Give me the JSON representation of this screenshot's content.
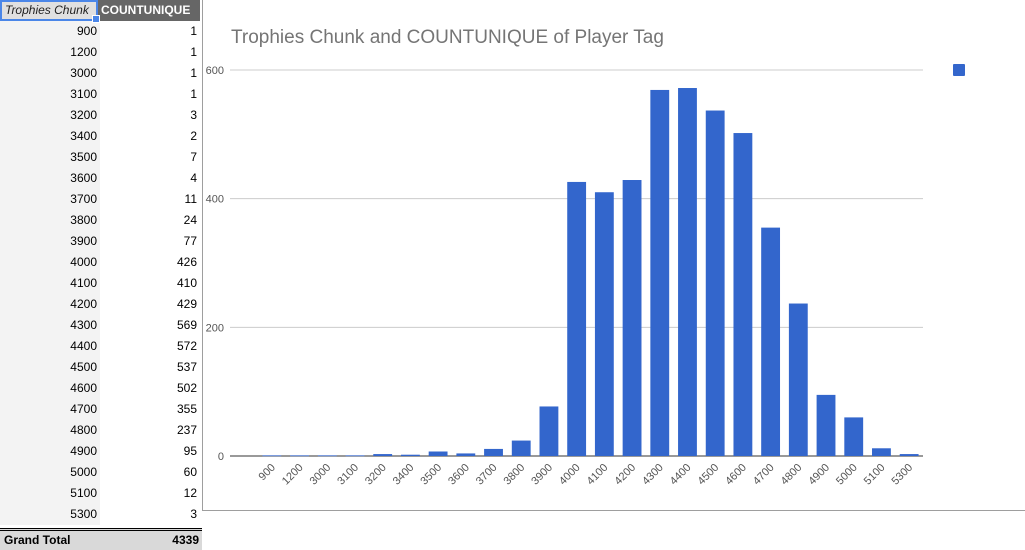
{
  "table": {
    "headers": [
      "Trophies Chunk",
      "COUNTUNIQUE"
    ],
    "rows": [
      [
        "900",
        "1"
      ],
      [
        "1200",
        "1"
      ],
      [
        "3000",
        "1"
      ],
      [
        "3100",
        "1"
      ],
      [
        "3200",
        "3"
      ],
      [
        "3400",
        "2"
      ],
      [
        "3500",
        "7"
      ],
      [
        "3600",
        "4"
      ],
      [
        "3700",
        "11"
      ],
      [
        "3800",
        "24"
      ],
      [
        "3900",
        "77"
      ],
      [
        "4000",
        "426"
      ],
      [
        "4100",
        "410"
      ],
      [
        "4200",
        "429"
      ],
      [
        "4300",
        "569"
      ],
      [
        "4400",
        "572"
      ],
      [
        "4500",
        "537"
      ],
      [
        "4600",
        "502"
      ],
      [
        "4700",
        "355"
      ],
      [
        "4800",
        "237"
      ],
      [
        "4900",
        "95"
      ],
      [
        "5000",
        "60"
      ],
      [
        "5100",
        "12"
      ],
      [
        "5300",
        "3"
      ]
    ],
    "total_label": "Grand Total",
    "total_value": "4339"
  },
  "chart_data": {
    "type": "bar",
    "title": "Trophies Chunk and COUNTUNIQUE of Player Tag",
    "categories": [
      "900",
      "1200",
      "3000",
      "3100",
      "3200",
      "3400",
      "3500",
      "3600",
      "3700",
      "3800",
      "3900",
      "4000",
      "4100",
      "4200",
      "4300",
      "4400",
      "4500",
      "4600",
      "4700",
      "4800",
      "4900",
      "5000",
      "5100",
      "5300"
    ],
    "values": [
      1,
      1,
      1,
      1,
      3,
      2,
      7,
      4,
      11,
      24,
      77,
      426,
      410,
      429,
      569,
      572,
      537,
      502,
      355,
      237,
      95,
      60,
      12,
      3
    ],
    "ylim": [
      0,
      600
    ],
    "yticks": [
      0,
      200,
      400,
      600
    ],
    "grid": true,
    "legend": "right",
    "color": "#3366cc"
  }
}
